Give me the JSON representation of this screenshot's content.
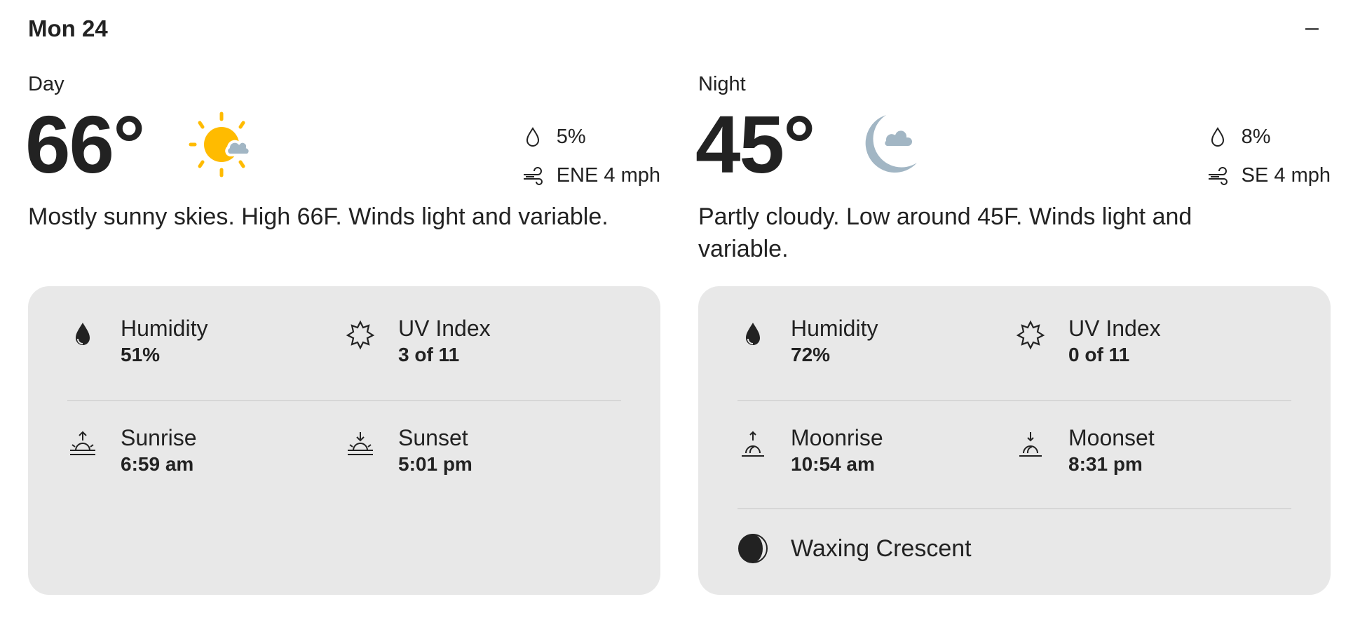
{
  "header": {
    "title": "Mon 24",
    "collapse_label": "–"
  },
  "day": {
    "period": "Day",
    "temp": "66°",
    "icon": "sun-partly-cloudy-icon",
    "precip": "5%",
    "wind": "ENE 4 mph",
    "description": "Mostly sunny skies. High 66F. Winds light and variable.",
    "details": {
      "humidity": {
        "label": "Humidity",
        "value": "51%"
      },
      "uv": {
        "label": "UV Index",
        "value": "3 of 11"
      },
      "rise": {
        "label": "Sunrise",
        "value": "6:59 am"
      },
      "set": {
        "label": "Sunset",
        "value": "5:01 pm"
      }
    }
  },
  "night": {
    "period": "Night",
    "temp": "45°",
    "icon": "moon-partly-cloudy-icon",
    "precip": "8%",
    "wind": "SE 4 mph",
    "description": "Partly cloudy. Low around 45F. Winds light and variable.",
    "details": {
      "humidity": {
        "label": "Humidity",
        "value": "72%"
      },
      "uv": {
        "label": "UV Index",
        "value": "0 of 11"
      },
      "rise": {
        "label": "Moonrise",
        "value": "10:54 am"
      },
      "set": {
        "label": "Moonset",
        "value": "8:31 pm"
      },
      "phase": "Waxing Crescent"
    }
  },
  "colors": {
    "sun": "#FFBB00",
    "cloud": "#A2B6C4",
    "panel": "#E8E8E8",
    "text": "#222222"
  }
}
